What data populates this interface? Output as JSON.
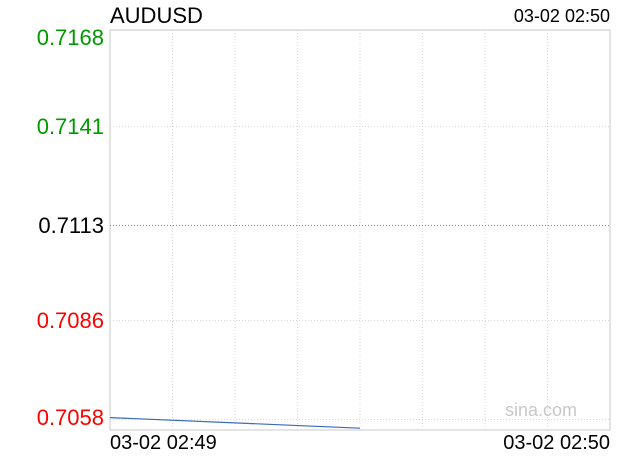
{
  "header": {
    "symbol": "AUDUSD",
    "timestamp": "03-02 02:50"
  },
  "watermark": "sina.com",
  "colors": {
    "up": "#009900",
    "down": "#ff0000",
    "neutral": "#000000",
    "line": "#3a6ab8",
    "grid": "#d8d8d8"
  },
  "chart_data": {
    "type": "line",
    "title": "AUDUSD",
    "y_ticks": [
      {
        "label": "0.7168",
        "value": 0.7168,
        "tone": "up"
      },
      {
        "label": "0.7141",
        "value": 0.7141,
        "tone": "up"
      },
      {
        "label": "0.7113",
        "value": 0.7113,
        "tone": "neutral"
      },
      {
        "label": "0.7086",
        "value": 0.7086,
        "tone": "down"
      },
      {
        "label": "0.7058",
        "value": 0.7058,
        "tone": "down"
      }
    ],
    "ylim": [
      0.7055,
      0.7168
    ],
    "reference_value": 0.7113,
    "x_labels": [
      "03-02 02:49",
      "03-02 02:50"
    ],
    "series": [
      {
        "x": [
          0,
          0.25,
          0.5
        ],
        "values": [
          0.70585,
          0.7057,
          0.70555
        ]
      }
    ],
    "grid": true
  }
}
